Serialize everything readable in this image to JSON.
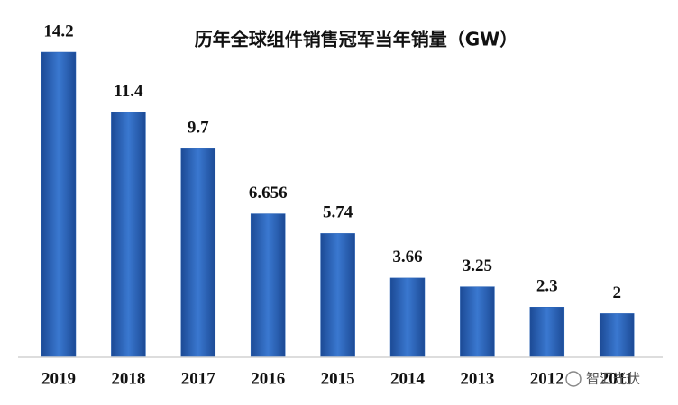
{
  "chart_data": {
    "type": "bar",
    "title": "历年全球组件销售冠军当年销量（GW）",
    "categories": [
      "2019",
      "2018",
      "2017",
      "2016",
      "2015",
      "2014",
      "2013",
      "2012",
      "2011"
    ],
    "values": [
      14.2,
      11.4,
      9.7,
      6.656,
      5.74,
      3.66,
      3.25,
      2.3,
      2
    ],
    "color": "#2a64b8"
  },
  "watermark": "智汇光伏"
}
